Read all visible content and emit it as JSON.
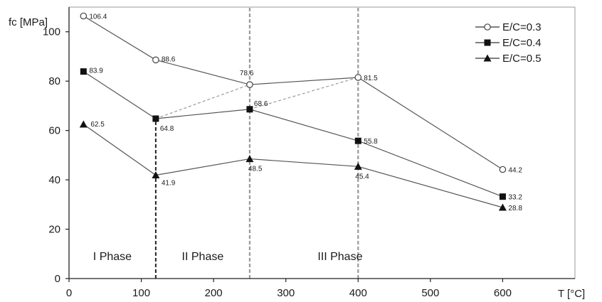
{
  "chart_data": {
    "type": "line",
    "ylabel": "fc [MPa]",
    "xlabel": "T [°C]",
    "xlim": [
      0,
      700
    ],
    "ylim": [
      0,
      110
    ],
    "xticks": [
      0,
      100,
      200,
      300,
      400,
      500,
      600
    ],
    "yticks": [
      0,
      20,
      40,
      60,
      80,
      100
    ],
    "grid": false,
    "legend_position": "top-right",
    "series": [
      {
        "name": "E/C=0.3",
        "marker": "open-circle",
        "x": [
          20,
          120,
          250,
          400,
          600
        ],
        "values": [
          106.4,
          88.6,
          78.6,
          81.5,
          44.2
        ],
        "labels": [
          "106.4",
          "88.6",
          "78.6",
          "81.5",
          "44.2"
        ]
      },
      {
        "name": "E/C=0.4",
        "marker": "filled-square",
        "x": [
          20,
          120,
          250,
          400,
          600
        ],
        "values": [
          83.9,
          64.8,
          68.6,
          55.8,
          33.2
        ],
        "labels": [
          "83.9",
          "64.8",
          "68.6",
          "55.8",
          "33.2"
        ]
      },
      {
        "name": "E/C=0.5",
        "marker": "filled-triangle",
        "x": [
          20,
          120,
          250,
          400,
          600
        ],
        "values": [
          62.5,
          41.9,
          48.5,
          45.4,
          28.8
        ],
        "labels": [
          "62.5",
          "41.9",
          "48.5",
          "45.4",
          "28.8"
        ]
      }
    ],
    "phase_boundaries": [
      {
        "lower_x": 120,
        "upper_x": 120,
        "upper_y": 64.8,
        "style": "black-dashed"
      },
      {
        "lower_x": 250,
        "upper_x": 250,
        "upper_y": 110,
        "style": "gray-dashed"
      },
      {
        "lower_x": 400,
        "upper_x": 400,
        "upper_y": 110,
        "style": "gray-dashed"
      }
    ],
    "dashed_links": [
      {
        "from": [
          120,
          64.8
        ],
        "to": [
          250,
          78.6
        ]
      },
      {
        "from": [
          250,
          68.6
        ],
        "to": [
          400,
          81.5
        ]
      }
    ],
    "phases": [
      {
        "label": "I Phase",
        "x": 60,
        "y": 7.5
      },
      {
        "label": "II Phase",
        "x": 185,
        "y": 7.5
      },
      {
        "label": "III Phase",
        "x": 375,
        "y": 7.5
      }
    ]
  }
}
